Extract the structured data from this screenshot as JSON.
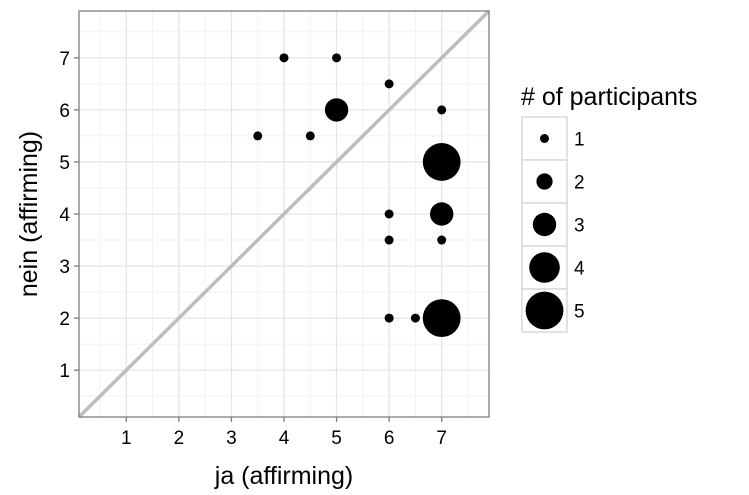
{
  "chart_data": {
    "type": "scatter",
    "xlabel": "ja (affirming)",
    "ylabel": "nein (affirming)",
    "xlim": [
      0.1,
      7.9
    ],
    "ylim": [
      0.1,
      7.9
    ],
    "x_ticks": [
      1,
      2,
      3,
      4,
      5,
      6,
      7
    ],
    "y_ticks": [
      1,
      2,
      3,
      4,
      5,
      6,
      7
    ],
    "grid": true,
    "reference_line": {
      "type": "identity",
      "color": "#bdbdbd"
    },
    "point_color": "#000000",
    "size_legend": {
      "title": "# of participants",
      "placement": "right",
      "levels": [
        1,
        2,
        3,
        4,
        5
      ]
    },
    "points": [
      {
        "x": 4,
        "y": 7,
        "n": 1
      },
      {
        "x": 5,
        "y": 7,
        "n": 1
      },
      {
        "x": 6,
        "y": 6.5,
        "n": 1
      },
      {
        "x": 5,
        "y": 6,
        "n": 3
      },
      {
        "x": 7,
        "y": 6,
        "n": 1
      },
      {
        "x": 3.5,
        "y": 5.5,
        "n": 1
      },
      {
        "x": 4.5,
        "y": 5.5,
        "n": 1
      },
      {
        "x": 7,
        "y": 5,
        "n": 5
      },
      {
        "x": 6,
        "y": 4,
        "n": 1
      },
      {
        "x": 7,
        "y": 4,
        "n": 3
      },
      {
        "x": 6,
        "y": 3.5,
        "n": 1
      },
      {
        "x": 7,
        "y": 3.5,
        "n": 1
      },
      {
        "x": 6,
        "y": 2,
        "n": 1
      },
      {
        "x": 6.5,
        "y": 2,
        "n": 1
      },
      {
        "x": 7,
        "y": 2,
        "n": 5
      }
    ]
  }
}
